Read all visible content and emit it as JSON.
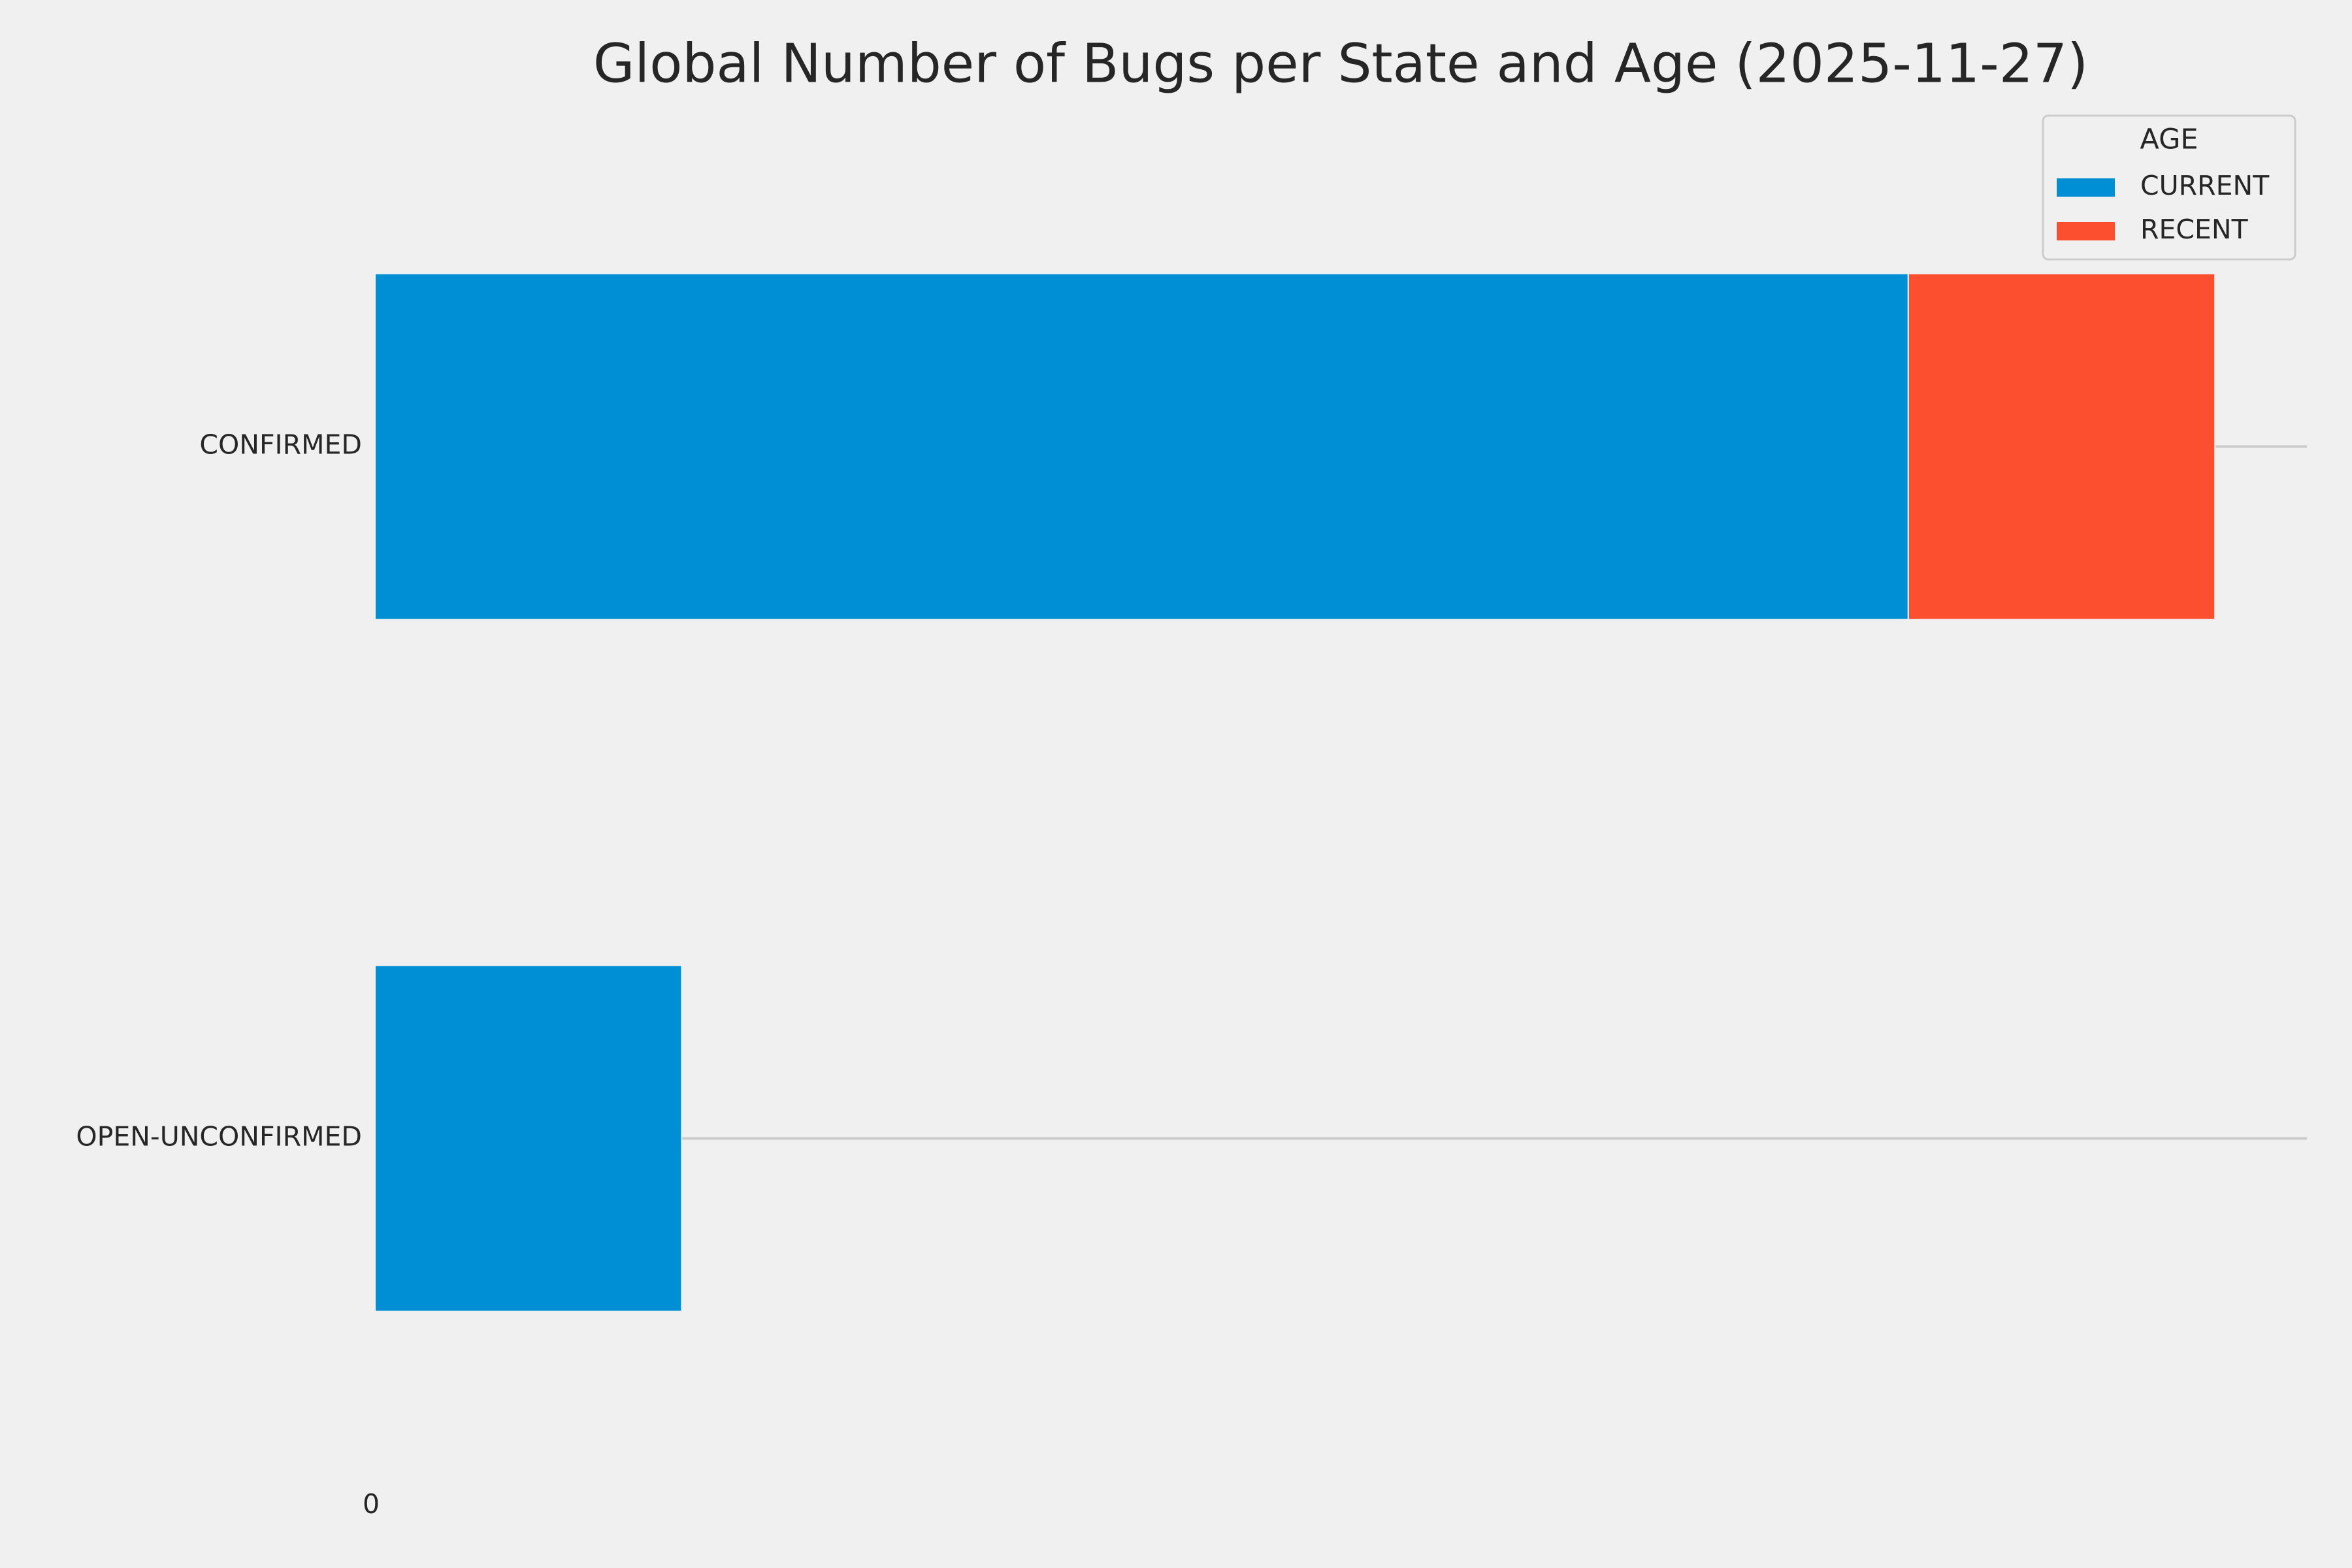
{
  "chart_data": {
    "type": "stacked-barh",
    "title": "Global Number of Bugs per State and Age (2025-11-27)",
    "categories": [
      "CONFIRMED",
      "OPEN-UNCONFIRMED"
    ],
    "series": [
      {
        "name": "CURRENT",
        "color": "#008fd5",
        "values": [
          5,
          1
        ]
      },
      {
        "name": "RECENT",
        "color": "#fc4f30",
        "values": [
          1,
          null
        ]
      }
    ],
    "legend_title": "AGE",
    "legend": "upper right",
    "xlim": [
      0,
      6.3
    ],
    "xticks": [
      0
    ],
    "grid": true
  }
}
